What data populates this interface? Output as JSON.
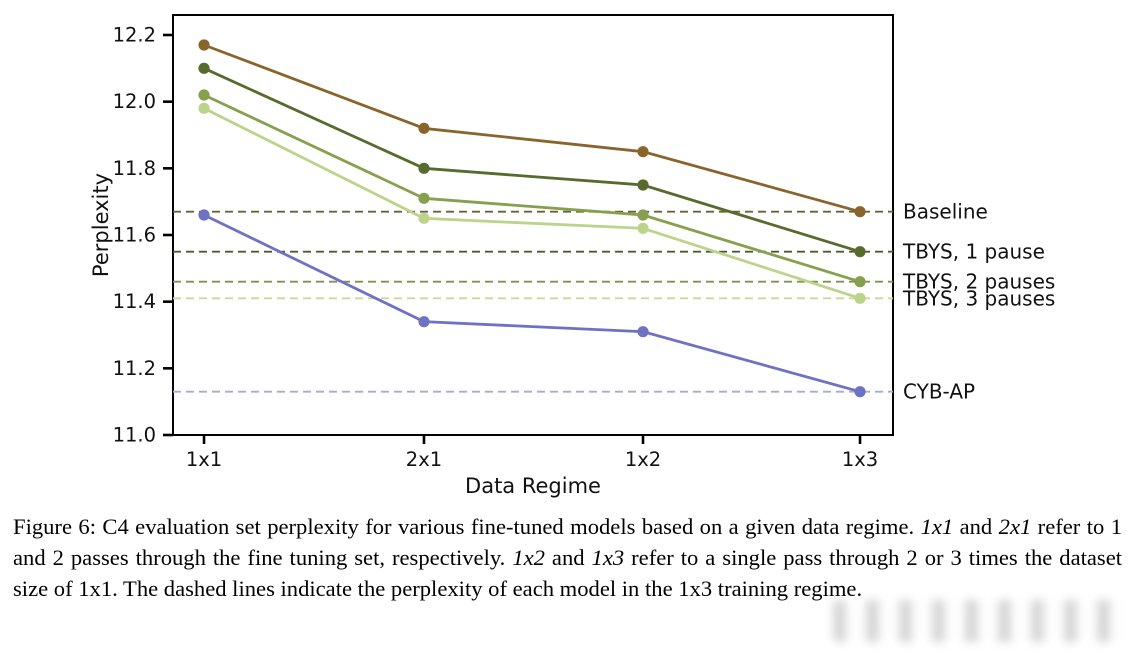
{
  "chart_data": {
    "type": "line",
    "title": "",
    "xlabel": "Data Regime",
    "ylabel": "Perplexity",
    "categories": [
      "1x1",
      "2x1",
      "1x2",
      "1x3"
    ],
    "y_ticks": [
      11.0,
      11.2,
      11.4,
      11.6,
      11.8,
      12.0,
      12.2
    ],
    "ylim": [
      11.0,
      12.26
    ],
    "grid": false,
    "legend_position": "right-edge-labels",
    "series": [
      {
        "name": "Baseline",
        "color": "#8a652b",
        "dash_color": "#6e6038",
        "values": [
          12.17,
          11.92,
          11.85,
          11.67
        ],
        "dashed_reference": 11.67
      },
      {
        "name": "TBYS, 1 pause",
        "color": "#566b2d",
        "dash_color": "#505a2b",
        "values": [
          12.1,
          11.8,
          11.75,
          11.55
        ],
        "dashed_reference": 11.55
      },
      {
        "name": "TBYS, 2 pauses",
        "color": "#87a04e",
        "dash_color": "#82914f",
        "values": [
          12.02,
          11.71,
          11.66,
          11.46
        ],
        "dashed_reference": 11.46
      },
      {
        "name": "TBYS, 3 pauses",
        "color": "#bcd38b",
        "dash_color": "#ccd89b",
        "values": [
          11.98,
          11.65,
          11.62,
          11.41
        ],
        "dashed_reference": 11.41
      },
      {
        "name": "CYB-AP",
        "color": "#6d72c3",
        "dash_color": "#a9abc7",
        "values": [
          11.66,
          11.34,
          11.31,
          11.13
        ],
        "dashed_reference": 11.13
      }
    ]
  },
  "caption": {
    "segments": [
      {
        "text": "Figure 6: C4 evaluation set perplexity for various fine-tuned models based on a given data regime. ",
        "italic": false
      },
      {
        "text": "1x1",
        "italic": true
      },
      {
        "text": " and ",
        "italic": false
      },
      {
        "text": "2x1",
        "italic": true
      },
      {
        "text": " refer to 1 and 2 passes through the fine tuning set, respectively. ",
        "italic": false
      },
      {
        "text": "1x2",
        "italic": true
      },
      {
        "text": " and ",
        "italic": false
      },
      {
        "text": "1x3",
        "italic": true
      },
      {
        "text": " refer to a single pass through 2 or 3 times the dataset size of 1x1. The dashed lines indicate the perplexity of each model in the 1x3 training regime.",
        "italic": false
      }
    ]
  }
}
